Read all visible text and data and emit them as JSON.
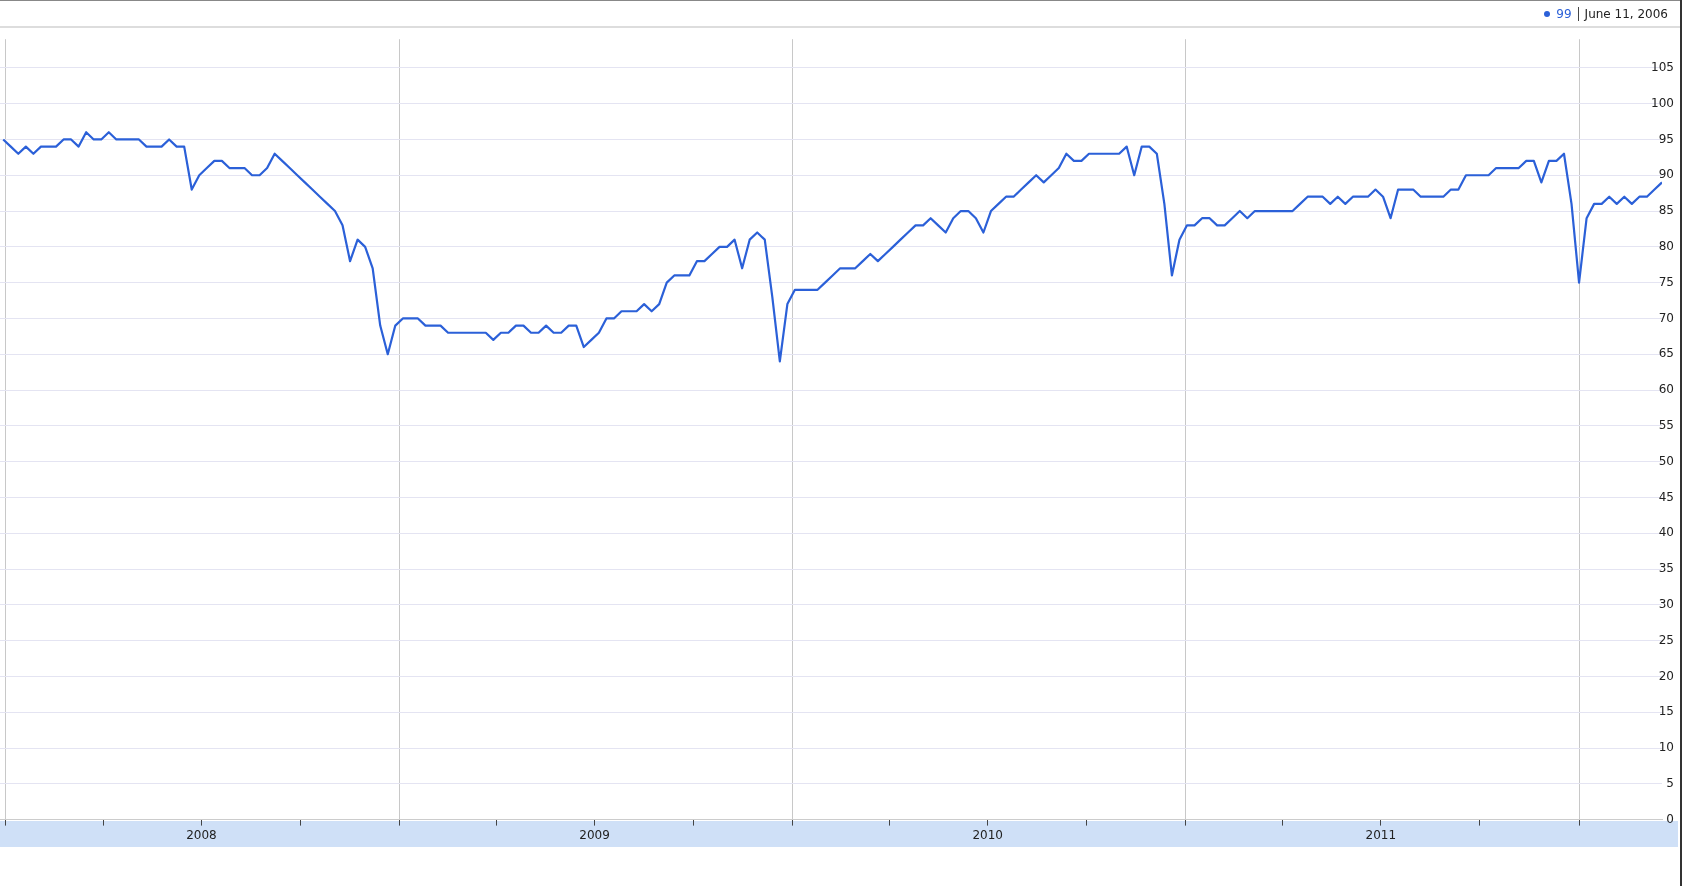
{
  "chart_data": {
    "type": "line",
    "annotations": [
      "99",
      "June 11, 2006"
    ],
    "x": [
      "2007-12-30",
      "2008-01-06",
      "2008-01-13",
      "2008-01-20",
      "2008-01-27",
      "2008-02-03",
      "2008-02-10",
      "2008-02-17",
      "2008-02-24",
      "2008-03-02",
      "2008-03-09",
      "2008-03-16",
      "2008-03-23",
      "2008-03-30",
      "2008-04-06",
      "2008-04-13",
      "2008-04-20",
      "2008-04-27",
      "2008-05-04",
      "2008-05-11",
      "2008-05-18",
      "2008-05-25",
      "2008-06-01",
      "2008-06-08",
      "2008-06-15",
      "2008-06-22",
      "2008-06-29",
      "2008-07-06",
      "2008-07-13",
      "2008-07-20",
      "2008-07-27",
      "2008-08-03",
      "2008-08-10",
      "2008-08-17",
      "2008-08-24",
      "2008-08-31",
      "2008-09-07",
      "2008-09-14",
      "2008-09-21",
      "2008-09-28",
      "2008-10-05",
      "2008-10-12",
      "2008-10-19",
      "2008-10-26",
      "2008-11-02",
      "2008-11-09",
      "2008-11-16",
      "2008-11-23",
      "2008-11-30",
      "2008-12-07",
      "2008-12-14",
      "2008-12-21",
      "2008-12-28",
      "2009-01-04",
      "2009-01-11",
      "2009-01-18",
      "2009-01-25",
      "2009-02-01",
      "2009-02-08",
      "2009-02-15",
      "2009-02-22",
      "2009-03-01",
      "2009-03-08",
      "2009-03-15",
      "2009-03-22",
      "2009-03-29",
      "2009-04-05",
      "2009-04-12",
      "2009-04-19",
      "2009-04-26",
      "2009-05-03",
      "2009-05-10",
      "2009-05-17",
      "2009-05-24",
      "2009-05-31",
      "2009-06-07",
      "2009-06-14",
      "2009-06-21",
      "2009-06-28",
      "2009-07-05",
      "2009-07-12",
      "2009-07-19",
      "2009-07-26",
      "2009-08-02",
      "2009-08-09",
      "2009-08-16",
      "2009-08-23",
      "2009-08-30",
      "2009-09-06",
      "2009-09-13",
      "2009-09-20",
      "2009-09-27",
      "2009-10-04",
      "2009-10-11",
      "2009-10-18",
      "2009-10-25",
      "2009-11-01",
      "2009-11-08",
      "2009-11-15",
      "2009-11-22",
      "2009-11-29",
      "2009-12-06",
      "2009-12-13",
      "2009-12-20",
      "2009-12-27",
      "2010-01-03",
      "2010-01-10",
      "2010-01-17",
      "2010-01-24",
      "2010-01-31",
      "2010-02-07",
      "2010-02-14",
      "2010-02-21",
      "2010-02-28",
      "2010-03-07",
      "2010-03-14",
      "2010-03-21",
      "2010-03-28",
      "2010-04-04",
      "2010-04-11",
      "2010-04-18",
      "2010-04-25",
      "2010-05-02",
      "2010-05-09",
      "2010-05-16",
      "2010-05-23",
      "2010-05-30",
      "2010-06-06",
      "2010-06-13",
      "2010-06-20",
      "2010-06-27",
      "2010-07-04",
      "2010-07-11",
      "2010-07-18",
      "2010-07-25",
      "2010-08-01",
      "2010-08-08",
      "2010-08-15",
      "2010-08-22",
      "2010-08-29",
      "2010-09-05",
      "2010-09-12",
      "2010-09-19",
      "2010-09-26",
      "2010-10-03",
      "2010-10-10",
      "2010-10-17",
      "2010-10-24",
      "2010-10-31",
      "2010-11-07",
      "2010-11-14",
      "2010-11-21",
      "2010-11-28",
      "2010-12-05",
      "2010-12-12",
      "2010-12-19",
      "2010-12-26",
      "2011-01-02",
      "2011-01-09",
      "2011-01-16",
      "2011-01-23",
      "2011-01-30",
      "2011-02-06",
      "2011-02-13",
      "2011-02-20",
      "2011-02-27",
      "2011-03-06",
      "2011-03-13",
      "2011-03-20",
      "2011-03-27",
      "2011-04-03",
      "2011-04-10",
      "2011-04-17",
      "2011-04-24",
      "2011-05-01",
      "2011-05-08",
      "2011-05-15",
      "2011-05-22",
      "2011-05-29",
      "2011-06-05",
      "2011-06-12",
      "2011-06-19",
      "2011-06-26",
      "2011-07-03",
      "2011-07-10",
      "2011-07-17",
      "2011-07-24",
      "2011-07-31",
      "2011-08-07",
      "2011-08-14",
      "2011-08-21",
      "2011-08-28",
      "2011-09-04",
      "2011-09-11",
      "2011-09-18",
      "2011-09-25",
      "2011-10-02",
      "2011-10-09",
      "2011-10-16",
      "2011-10-23",
      "2011-10-30",
      "2011-11-06",
      "2011-11-13",
      "2011-11-20",
      "2011-11-27",
      "2011-12-04",
      "2011-12-11",
      "2011-12-18",
      "2011-12-25",
      "2012-01-01",
      "2012-01-08",
      "2012-01-15",
      "2012-01-22",
      "2012-01-29",
      "2012-02-05",
      "2012-02-12",
      "2012-02-19",
      "2012-02-26",
      "2012-03-04",
      "2012-03-11",
      "2012-03-18"
    ],
    "series": [
      {
        "color": "#2b60d8",
        "values": [
          95,
          94,
          93,
          94,
          93,
          94,
          94,
          94,
          95,
          95,
          94,
          96,
          95,
          95,
          96,
          95,
          95,
          95,
          95,
          94,
          94,
          94,
          95,
          94,
          94,
          88,
          90,
          91,
          92,
          92,
          91,
          91,
          91,
          90,
          90,
          91,
          93,
          92,
          91,
          90,
          89,
          88,
          87,
          86,
          85,
          83,
          78,
          81,
          80,
          77,
          69,
          65,
          69,
          70,
          70,
          70,
          69,
          69,
          69,
          68,
          68,
          68,
          68,
          68,
          68,
          67,
          68,
          68,
          69,
          69,
          68,
          68,
          69,
          68,
          68,
          69,
          69,
          66,
          67,
          68,
          70,
          70,
          71,
          71,
          71,
          72,
          71,
          72,
          75,
          76,
          76,
          76,
          78,
          78,
          79,
          80,
          80,
          81,
          77,
          81,
          82,
          81,
          73,
          64,
          72,
          74,
          74,
          74,
          74,
          75,
          76,
          77,
          77,
          77,
          78,
          79,
          78,
          79,
          80,
          81,
          82,
          83,
          83,
          84,
          83,
          82,
          84,
          85,
          85,
          84,
          82,
          85,
          86,
          87,
          87,
          88,
          89,
          90,
          89,
          90,
          91,
          93,
          92,
          92,
          93,
          93,
          93,
          93,
          93,
          94,
          90,
          94,
          94,
          93,
          86,
          76,
          81,
          83,
          83,
          84,
          84,
          83,
          83,
          84,
          85,
          84,
          85,
          85,
          85,
          85,
          85,
          85,
          86,
          87,
          87,
          87,
          86,
          87,
          86,
          87,
          87,
          87,
          88,
          87,
          84,
          88,
          88,
          88,
          87,
          87,
          87,
          87,
          88,
          88,
          90,
          90,
          90,
          90,
          91,
          91,
          91,
          91,
          92,
          92,
          89,
          92,
          92,
          93,
          86,
          75,
          84,
          86,
          86,
          87,
          86,
          87,
          86,
          87,
          87,
          88,
          89
        ]
      }
    ],
    "xlim": [
      "2007-12-27",
      "2012-03-18"
    ],
    "xticks": [
      {
        "value": "2008-01-01",
        "label": null
      },
      {
        "value": "2008-04-01",
        "label": null
      },
      {
        "value": "2008-07-01",
        "label": "2008"
      },
      {
        "value": "2008-10-01",
        "label": null
      },
      {
        "value": "2009-01-01",
        "label": null
      },
      {
        "value": "2009-04-01",
        "label": null
      },
      {
        "value": "2009-07-01",
        "label": "2009"
      },
      {
        "value": "2009-10-01",
        "label": null
      },
      {
        "value": "2010-01-01",
        "label": null
      },
      {
        "value": "2010-04-01",
        "label": null
      },
      {
        "value": "2010-07-01",
        "label": "2010"
      },
      {
        "value": "2010-10-01",
        "label": null
      },
      {
        "value": "2011-01-01",
        "label": null
      },
      {
        "value": "2011-04-01",
        "label": null
      },
      {
        "value": "2011-07-01",
        "label": "2011"
      },
      {
        "value": "2011-10-01",
        "label": null
      },
      {
        "value": "2012-01-01",
        "label": null
      }
    ],
    "ylim": [
      0,
      109
    ],
    "yticks": [
      0,
      5,
      10,
      15,
      20,
      25,
      30,
      35,
      40,
      45,
      50,
      55,
      60,
      65,
      70,
      75,
      80,
      85,
      90,
      95,
      100,
      105
    ],
    "grid": true,
    "marker": "none",
    "line_style": "solid"
  }
}
